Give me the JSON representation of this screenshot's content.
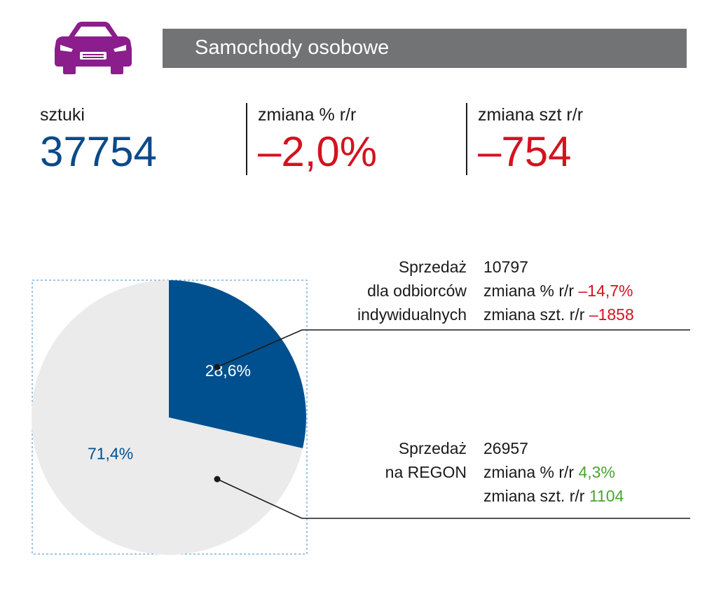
{
  "header": {
    "title": "Samochody osobowe",
    "icon": "car-icon",
    "icon_color": "#8b1d8c"
  },
  "stats": [
    {
      "label": "sztuki",
      "value": "37754",
      "color": "#0a4a8a"
    },
    {
      "label": "zmiana % r/r",
      "value": "–2,0%",
      "color": "#d4121f"
    },
    {
      "label": "zmiana szt r/r",
      "value": "–754",
      "color": "#d4121f"
    }
  ],
  "segments": [
    {
      "label_lines": [
        "Sprzedaż",
        "dla odbiorców",
        "indywidualnych"
      ],
      "count": "10797",
      "pct_label": "zmiana % r/r",
      "pct_value": "–14,7%",
      "szt_label": "zmiana szt. r/r",
      "szt_value": "–1858"
    },
    {
      "label_lines": [
        "Sprzedaż",
        "na REGON"
      ],
      "count": "26957",
      "pct_label": "zmiana % r/r",
      "pct_value": "4,3%",
      "szt_label": "zmiana szt. r/r",
      "szt_value": "1104"
    }
  ],
  "chart_data": {
    "type": "pie",
    "slices": [
      {
        "label": "28,6%",
        "value": 28.6,
        "color": "#00508f",
        "label_color": "#ffffff"
      },
      {
        "label": "71,4%",
        "value": 71.4,
        "color": "#ebebeb",
        "label_color": "#00508f"
      }
    ]
  },
  "colors": {
    "blue": "#0a4a8a",
    "red": "#d4121f",
    "green": "#4aa52e",
    "header_bar": "#717375"
  }
}
